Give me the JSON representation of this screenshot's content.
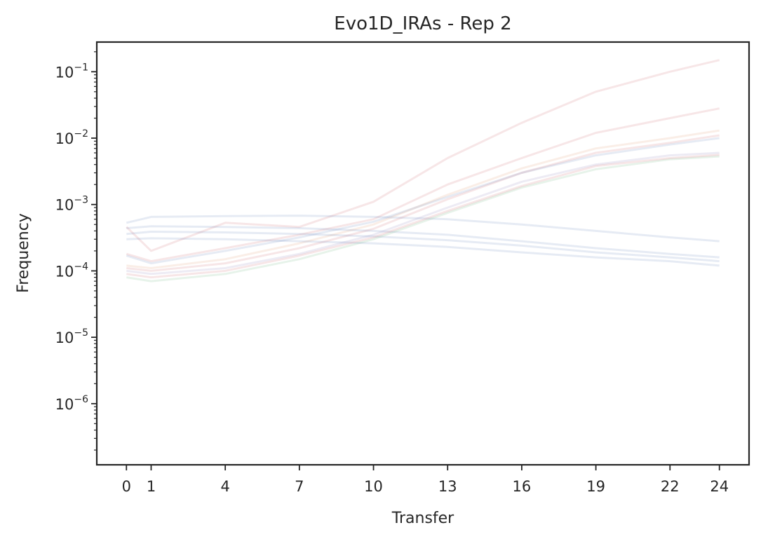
{
  "chart_data": {
    "type": "line",
    "title": "Evo1D_IRAs - Rep 2",
    "xlabel": "Transfer",
    "ylabel": "Frequency",
    "x": [
      0,
      1,
      4,
      7,
      10,
      13,
      16,
      19,
      22,
      24
    ],
    "x_ticks": [
      0,
      1,
      4,
      7,
      10,
      13,
      16,
      19,
      22,
      24
    ],
    "xlim": [
      -1.2,
      25.2
    ],
    "y_scale": "log",
    "ylim": [
      1.2e-07,
      0.28
    ],
    "y_ticks": [
      {
        "base": "10",
        "exp": "−6",
        "value": 1e-06
      },
      {
        "base": "10",
        "exp": "−5",
        "value": 1e-05
      },
      {
        "base": "10",
        "exp": "−4",
        "value": 0.0001
      },
      {
        "base": "10",
        "exp": "−3",
        "value": 0.001
      },
      {
        "base": "10",
        "exp": "−2",
        "value": 0.01
      },
      {
        "base": "10",
        "exp": "−1",
        "value": 0.1
      }
    ],
    "grid": false,
    "legend": "none",
    "line_alpha": 0.12,
    "palette": [
      "#4c72b0",
      "#dd8452",
      "#55a868",
      "#c44e52",
      "#8172b3",
      "#937860",
      "#da8bc3",
      "#8c8c8c",
      "#ccb974",
      "#64b5cd"
    ],
    "series": [
      {
        "color": "#c44e52",
        "values": [
          0.00046,
          0.0002,
          0.00053,
          0.00046,
          0.0011,
          0.005,
          0.017,
          0.05,
          0.1,
          0.15
        ]
      },
      {
        "color": "#c44e52",
        "values": [
          0.00018,
          0.00014,
          0.00022,
          0.00035,
          0.0006,
          0.002,
          0.005,
          0.012,
          0.02,
          0.028
        ]
      },
      {
        "color": "#dd8452",
        "values": [
          0.00012,
          0.00011,
          0.00015,
          0.00026,
          0.0005,
          0.0014,
          0.0035,
          0.007,
          0.01,
          0.013
        ]
      },
      {
        "color": "#c44e52",
        "values": [
          0.00011,
          0.0001,
          0.00013,
          0.00022,
          0.00043,
          0.0012,
          0.003,
          0.006,
          0.0085,
          0.011
        ]
      },
      {
        "color": "#4c72b0",
        "values": [
          0.00017,
          0.00013,
          0.0002,
          0.00032,
          0.00055,
          0.0013,
          0.003,
          0.0055,
          0.008,
          0.01
        ]
      },
      {
        "color": "#4c72b0",
        "values": [
          0.00053,
          0.00065,
          0.00067,
          0.00068,
          0.00065,
          0.0006,
          0.0005,
          0.0004,
          0.00032,
          0.00028
        ]
      },
      {
        "color": "#4c72b0",
        "values": [
          0.00044,
          0.00047,
          0.00046,
          0.00044,
          0.0004,
          0.00035,
          0.00028,
          0.00022,
          0.00018,
          0.00016
        ]
      },
      {
        "color": "#4c72b0",
        "values": [
          0.00036,
          0.00039,
          0.00038,
          0.00036,
          0.00033,
          0.00029,
          0.00024,
          0.00019,
          0.00016,
          0.00014
        ]
      },
      {
        "color": "#4c72b0",
        "values": [
          0.0003,
          0.00031,
          0.0003,
          0.00028,
          0.00026,
          0.00023,
          0.00019,
          0.00016,
          0.00014,
          0.00012
        ]
      },
      {
        "color": "#8172b3",
        "values": [
          0.0001,
          9e-05,
          0.00011,
          0.00018,
          0.00035,
          0.0009,
          0.0022,
          0.004,
          0.0055,
          0.006
        ]
      },
      {
        "color": "#55a868",
        "values": [
          8e-05,
          7e-05,
          9e-05,
          0.00015,
          0.0003,
          0.00075,
          0.0018,
          0.0034,
          0.0048,
          0.0053
        ]
      },
      {
        "color": "#c44e52",
        "values": [
          9e-05,
          8e-05,
          0.0001,
          0.00017,
          0.00032,
          0.0008,
          0.0019,
          0.0038,
          0.005,
          0.0056
        ]
      }
    ]
  }
}
